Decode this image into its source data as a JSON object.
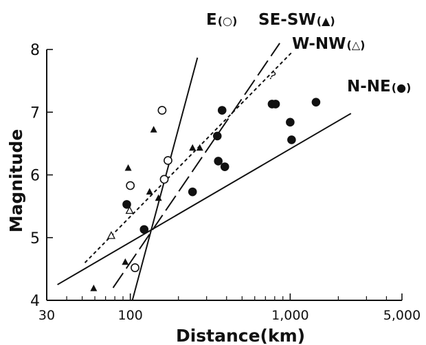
{
  "chart_data": {
    "type": "scatter",
    "title": "",
    "xlabel": "Distance(km)",
    "ylabel": "Magnitude",
    "x_scale": "log",
    "xlim": [
      30,
      5000
    ],
    "ylim": [
      4,
      8
    ],
    "x_ticks": [
      30,
      100,
      1000,
      5000
    ],
    "x_tick_labels": [
      "30",
      "100",
      "1,000",
      "5,000"
    ],
    "y_ticks": [
      4,
      5,
      6,
      7,
      8
    ],
    "y_tick_labels": [
      "4",
      "5",
      "6",
      "7",
      "8"
    ],
    "grid": false,
    "series": [
      {
        "name": "N-NE(●)",
        "marker": "filled-circle",
        "points": [
          [
            95,
            5.53
          ],
          [
            122,
            5.13
          ],
          [
            245,
            5.73
          ],
          [
            350,
            6.62
          ],
          [
            355,
            6.22
          ],
          [
            375,
            7.03
          ],
          [
            390,
            6.13
          ],
          [
            770,
            7.13
          ],
          [
            810,
            7.13
          ],
          [
            1000,
            6.84
          ],
          [
            1020,
            6.56
          ],
          [
            1450,
            7.16
          ]
        ],
        "fit_line": {
          "x": [
            35,
            2400
          ],
          "y": [
            4.25,
            6.98
          ],
          "style": "solid"
        }
      },
      {
        "name": "E(○)",
        "marker": "open-circle",
        "points": [
          [
            100,
            5.83
          ],
          [
            107,
            4.52
          ],
          [
            158,
            7.03
          ],
          [
            163,
            5.93
          ],
          [
            172,
            6.23
          ]
        ],
        "fit_line": {
          "x": [
            103,
            263
          ],
          "y": [
            4.0,
            7.87
          ],
          "style": "solid"
        }
      },
      {
        "name": "SE-SW(▲)",
        "marker": "filled-triangle",
        "points": [
          [
            59,
            4.19
          ],
          [
            93,
            4.61
          ],
          [
            97,
            6.11
          ],
          [
            132,
            5.73
          ],
          [
            140,
            6.72
          ],
          [
            150,
            5.63
          ],
          [
            245,
            6.43
          ],
          [
            272,
            6.43
          ]
        ],
        "fit_line": {
          "x": [
            78,
            860
          ],
          "y": [
            4.2,
            8.1
          ],
          "style": "long-dash"
        }
      },
      {
        "name": "W-NW(△)",
        "marker": "open-triangle",
        "points": [
          [
            76,
            5.03
          ],
          [
            99,
            5.43
          ]
        ],
        "fit_line": {
          "x": [
            52,
            1020
          ],
          "y": [
            4.6,
            7.95
          ],
          "style": "short-dash"
        }
      }
    ],
    "annotations": [
      "?"
    ]
  }
}
